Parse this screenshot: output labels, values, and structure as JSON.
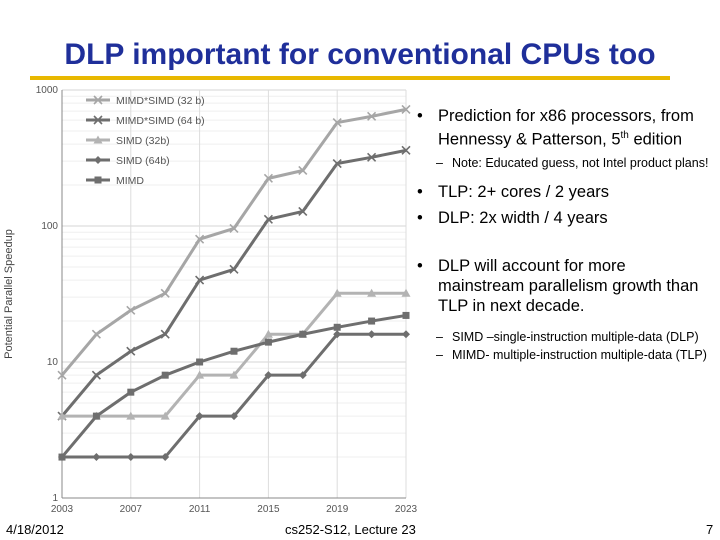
{
  "slide": {
    "title": "DLP important for conventional CPUs too",
    "footer_date": "4/18/2012",
    "footer_course": "cs252-S12, Lecture 23",
    "footer_page": "7"
  },
  "bullets": {
    "b1": "Prediction for x86 processors, from Hennessy & Patterson, 5",
    "b1_sup": "th",
    "b1_end": " edition",
    "b1_sub": "Note: Educated guess, not Intel product plans!",
    "b2": "TLP: 2+ cores / 2 years",
    "b3": "DLP: 2x width / 4 years",
    "b4": "DLP will account for more mainstream parallelism growth than TLP in next decade.",
    "b4_sub1": "SIMD –single-instruction multiple-data (DLP)",
    "b4_sub2": "MIMD- multiple-instruction multiple-data (TLP)"
  },
  "chart_data": {
    "type": "line",
    "title": "",
    "xlabel": "",
    "ylabel": "Potential Parallel Speedup",
    "yscale": "log",
    "ylim": [
      1,
      1000
    ],
    "yticks": [
      "1",
      "10",
      "100",
      "1000"
    ],
    "x": [
      2003,
      2005,
      2007,
      2009,
      2011,
      2013,
      2015,
      2017,
      2019,
      2021,
      2023
    ],
    "xticks": [
      "2003",
      "2007",
      "2011",
      "2015",
      "2019",
      "2023"
    ],
    "legend_position": "top-left",
    "series": [
      {
        "name": "MIMD*SIMD (32 b)",
        "color": "#a6a6a6",
        "marker": "x",
        "values": [
          8,
          16,
          24,
          32,
          80,
          96,
          224,
          256,
          576,
          640,
          720
        ]
      },
      {
        "name": "MIMD*SIMD (64 b)",
        "color": "#6e6e6e",
        "marker": "x",
        "values": [
          4,
          8,
          12,
          16,
          40,
          48,
          112,
          128,
          288,
          320,
          360
        ]
      },
      {
        "name": "SIMD (32b)",
        "color": "#b3b3b3",
        "marker": "triangle",
        "values": [
          4,
          4,
          4,
          4,
          8,
          8,
          16,
          16,
          32,
          32,
          32
        ]
      },
      {
        "name": "SIMD (64b)",
        "color": "#6e6e6e",
        "marker": "diamond",
        "values": [
          2,
          2,
          2,
          2,
          4,
          4,
          8,
          8,
          16,
          16,
          16
        ]
      },
      {
        "name": "MIMD",
        "color": "#6e6e6e",
        "marker": "square",
        "values": [
          2,
          4,
          6,
          8,
          10,
          12,
          14,
          16,
          18,
          20,
          22
        ]
      }
    ]
  }
}
